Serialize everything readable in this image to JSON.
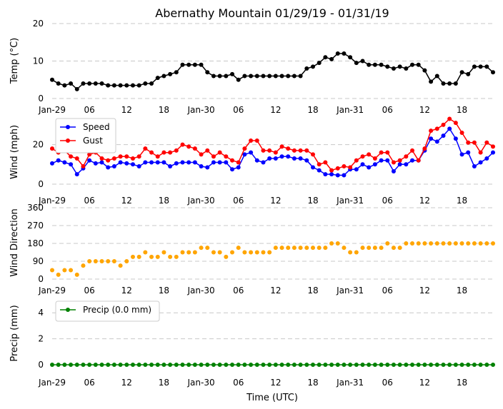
{
  "chart_data": {
    "title": "Abernathy Mountain 01/29/19 - 01/31/19",
    "xlabel": "Time (UTC)",
    "x_tick_labels": [
      "Jan-29",
      "06",
      "12",
      "18",
      "Jan-30",
      "06",
      "12",
      "18",
      "Jan-31",
      "06",
      "12",
      "18"
    ],
    "x_range_hours": [
      0,
      71
    ],
    "panels": [
      {
        "type": "line",
        "ylabel": "Temp (°C)",
        "ylim": [
          0,
          20
        ],
        "yticks": [
          0,
          10,
          20
        ],
        "legend": null,
        "series": [
          {
            "name": "Temp",
            "color": "#000000",
            "values": [
              5,
              4,
              3.5,
              4,
              2.5,
              4,
              4,
              4,
              4,
              3.5,
              3.5,
              3.5,
              3.5,
              3.5,
              3.5,
              4,
              4,
              5.5,
              6,
              6.5,
              7,
              9,
              9,
              9,
              9,
              7,
              6,
              6,
              6,
              6.5,
              5,
              6,
              6,
              6,
              6,
              6,
              6,
              6,
              6,
              6,
              6,
              8,
              8.5,
              9.5,
              11,
              10.5,
              12,
              12,
              11,
              9.5,
              10,
              9,
              9,
              9,
              8.5,
              8,
              8.5,
              8,
              9,
              9,
              7.5,
              4.5,
              6,
              4,
              4,
              4,
              7,
              6.5,
              8.5,
              8.5,
              8.5,
              7
            ]
          }
        ]
      },
      {
        "type": "line",
        "ylabel": "Wind (mph)",
        "ylim": [
          0,
          35
        ],
        "yticks": [
          0,
          20
        ],
        "legend": "upper-left",
        "series": [
          {
            "name": "Speed",
            "color": "#0000ff",
            "values": [
              10.5,
              12,
              11,
              10,
              5,
              8,
              12,
              10.5,
              11,
              8.5,
              9,
              11,
              10.5,
              10,
              9,
              11,
              11,
              11,
              11,
              9,
              10.5,
              11,
              11,
              11,
              9,
              8.5,
              11,
              11,
              11,
              7.5,
              8.5,
              15,
              16,
              12,
              11,
              13,
              13,
              14,
              14,
              13,
              13,
              12,
              8.5,
              7,
              5,
              5,
              4.5,
              4.5,
              7.5,
              7.5,
              10,
              8.5,
              10,
              12,
              12,
              6.5,
              10,
              10,
              12,
              12,
              17,
              23,
              21.5,
              24.5,
              28,
              23,
              15,
              16,
              9,
              11,
              13,
              16
            ]
          },
          {
            "name": "Gust",
            "color": "#ff0000",
            "values": [
              18,
              16,
              17,
              14,
              13,
              9,
              15,
              16,
              13,
              12,
              13,
              14,
              14,
              13,
              14,
              18,
              16,
              14,
              16,
              16,
              17,
              20,
              19,
              18,
              15,
              17,
              14,
              16,
              14,
              12,
              11,
              18,
              22,
              22,
              17,
              17,
              16,
              19,
              18,
              17,
              17,
              17,
              15,
              10,
              11,
              7,
              8,
              9,
              8.5,
              12,
              14,
              15,
              13,
              16,
              16,
              11,
              12,
              14,
              17,
              12,
              18,
              27,
              28,
              30,
              33,
              31,
              26,
              21,
              21,
              16,
              21,
              19
            ]
          }
        ]
      },
      {
        "type": "scatter",
        "ylabel": "Wind Direction",
        "ylim": [
          0,
          360
        ],
        "yticks": [
          0,
          90,
          180,
          270,
          360
        ],
        "legend": null,
        "series": [
          {
            "name": "Direction",
            "color": "#ffa500",
            "values": [
              45,
              22,
              45,
              45,
              22,
              68,
              90,
              90,
              90,
              90,
              90,
              68,
              90,
              112,
              112,
              135,
              112,
              112,
              135,
              112,
              112,
              135,
              135,
              135,
              158,
              158,
              135,
              135,
              112,
              135,
              158,
              135,
              135,
              135,
              135,
              135,
              158,
              158,
              158,
              158,
              158,
              158,
              158,
              158,
              158,
              180,
              180,
              158,
              135,
              135,
              158,
              158,
              158,
              158,
              180,
              158,
              158,
              180,
              180,
              180,
              180,
              180,
              180,
              180,
              180,
              180,
              180,
              180,
              180,
              180,
              180,
              180
            ]
          }
        ]
      },
      {
        "type": "line",
        "ylabel": "Precip (mm)",
        "ylim": [
          0,
          5
        ],
        "yticks": [
          0,
          2,
          4
        ],
        "legend": "upper-left",
        "series": [
          {
            "name": "Precip (0.0 mm)",
            "color": "#008000",
            "values": [
              0,
              0,
              0,
              0,
              0,
              0,
              0,
              0,
              0,
              0,
              0,
              0,
              0,
              0,
              0,
              0,
              0,
              0,
              0,
              0,
              0,
              0,
              0,
              0,
              0,
              0,
              0,
              0,
              0,
              0,
              0,
              0,
              0,
              0,
              0,
              0,
              0,
              0,
              0,
              0,
              0,
              0,
              0,
              0,
              0,
              0,
              0,
              0,
              0,
              0,
              0,
              0,
              0,
              0,
              0,
              0,
              0,
              0,
              0,
              0,
              0,
              0,
              0,
              0,
              0,
              0,
              0,
              0,
              0,
              0,
              0,
              0
            ]
          }
        ]
      }
    ]
  }
}
